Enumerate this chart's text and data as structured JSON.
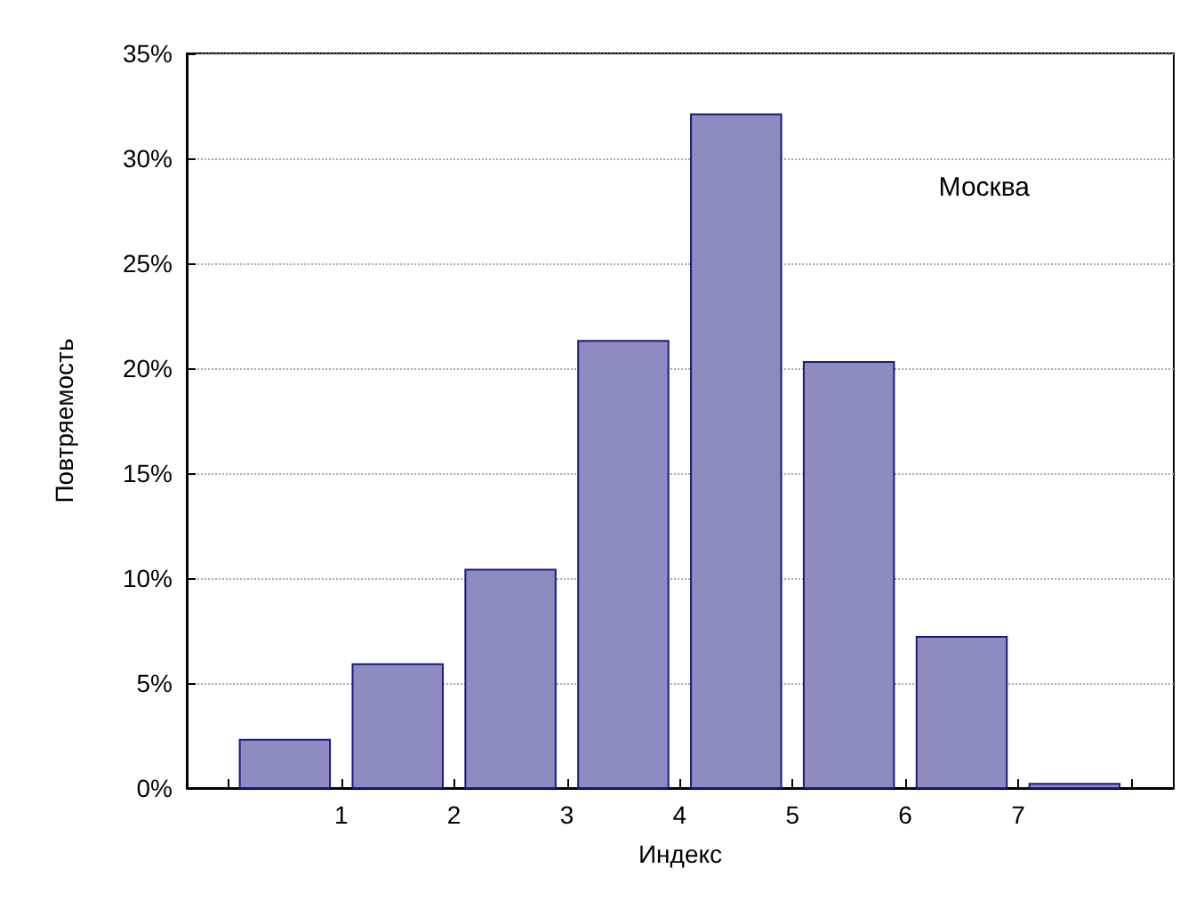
{
  "chart_data": {
    "type": "histogram",
    "xlabel": "Индекс",
    "ylabel": "Повтряемость",
    "annotations": [
      "Москва"
    ],
    "bins": [
      0,
      1,
      2,
      3,
      4,
      5,
      6,
      7,
      8
    ],
    "values": [
      2.3,
      5.9,
      10.4,
      21.3,
      32.1,
      20.3,
      7.2,
      0.2
    ],
    "color": "#8c8cc0",
    "xlim": [
      -0.37,
      8.38
    ],
    "xticks": [
      {
        "value": 0,
        "label": null
      },
      1,
      2,
      3,
      4,
      5,
      6,
      7,
      {
        "value": 8,
        "label": null
      }
    ],
    "ylim": [
      0,
      35
    ],
    "yticks": [
      {
        "value": 0,
        "label": "0%"
      },
      {
        "value": 5,
        "label": "5%"
      },
      {
        "value": 10,
        "label": "10%"
      },
      {
        "value": 15,
        "label": "15%"
      },
      {
        "value": 20,
        "label": "20%"
      },
      {
        "value": 25,
        "label": "25%"
      },
      {
        "value": 30,
        "label": "30%"
      },
      {
        "value": 35,
        "label": "35%"
      }
    ],
    "grid": "y"
  }
}
